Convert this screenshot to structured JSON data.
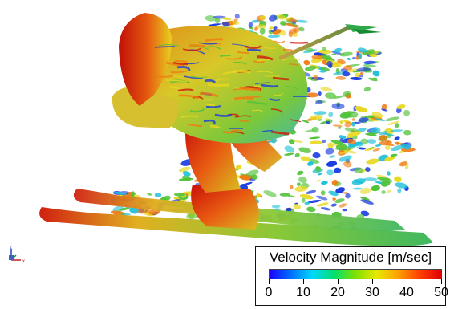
{
  "legend": {
    "title": "Velocity Magnitude [m/sec]",
    "min": 0,
    "max": 50,
    "ticks": [
      "0",
      "10",
      "20",
      "30",
      "40",
      "50"
    ],
    "colormap": [
      "#1a00ff",
      "#0070ff",
      "#00d8ff",
      "#00e070",
      "#7fe000",
      "#e8e800",
      "#ffa000",
      "#ff4000",
      "#e00000"
    ]
  },
  "axes": {
    "z": "z",
    "y": "y",
    "x": "x"
  },
  "colors": {
    "red": "#d01a0a",
    "orange": "#f07a10",
    "yellow": "#e8d820",
    "green": "#52c23a",
    "cyan": "#20c0d8",
    "blue": "#1a3ce0"
  }
}
